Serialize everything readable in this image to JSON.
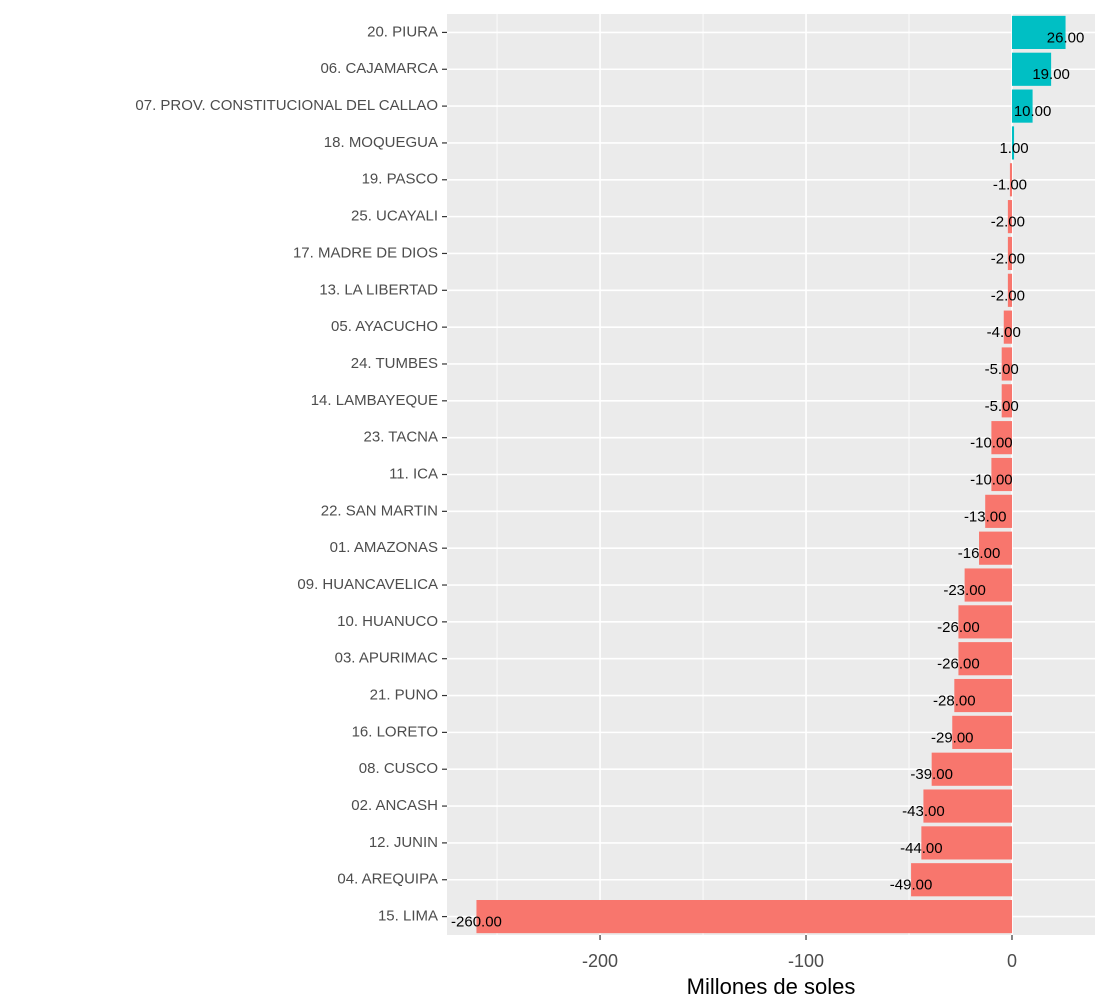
{
  "chart_data": {
    "type": "barh",
    "xlabel": "Millones de soles",
    "categories": [
      "20. PIURA",
      "06. CAJAMARCA",
      "07. PROV. CONSTITUCIONAL DEL CALLAO",
      "18. MOQUEGUA",
      "19. PASCO",
      "25. UCAYALI",
      "17. MADRE DE DIOS",
      "13. LA LIBERTAD",
      "05. AYACUCHO",
      "24. TUMBES",
      "14. LAMBAYEQUE",
      "23. TACNA",
      "11. ICA",
      "22. SAN MARTIN",
      "01. AMAZONAS",
      "09. HUANCAVELICA",
      "10. HUANUCO",
      "03. APURIMAC",
      "21. PUNO",
      "16. LORETO",
      "08. CUSCO",
      "02. ANCASH",
      "12. JUNIN",
      "04. AREQUIPA",
      "15. LIMA"
    ],
    "values": [
      26,
      19,
      10,
      1,
      -1,
      -2,
      -2,
      -2,
      -4,
      -5,
      -5,
      -10,
      -10,
      -13,
      -16,
      -23,
      -26,
      -26,
      -28,
      -29,
      -39,
      -43,
      -44,
      -49,
      -260
    ],
    "value_labels": [
      "26.00",
      "19.00",
      "10.00",
      "1.00",
      "-1.00",
      "-2.00",
      "-2.00",
      "-2.00",
      "-4.00",
      "-5.00",
      "-5.00",
      "-10.00",
      "-10.00",
      "-13.00",
      "-16.00",
      "-23.00",
      "-26.00",
      "-26.00",
      "-28.00",
      "-29.00",
      "-39.00",
      "-43.00",
      "-44.00",
      "-49.00",
      "-260.00"
    ],
    "positive_color": "#00bfc4",
    "negative_color": "#f8766d",
    "xlim": [
      -274.3,
      40.3
    ],
    "xticks": [
      -200,
      -100,
      0
    ],
    "x_minor_ticks": [
      -250,
      -150,
      -50
    ],
    "grid": true
  }
}
